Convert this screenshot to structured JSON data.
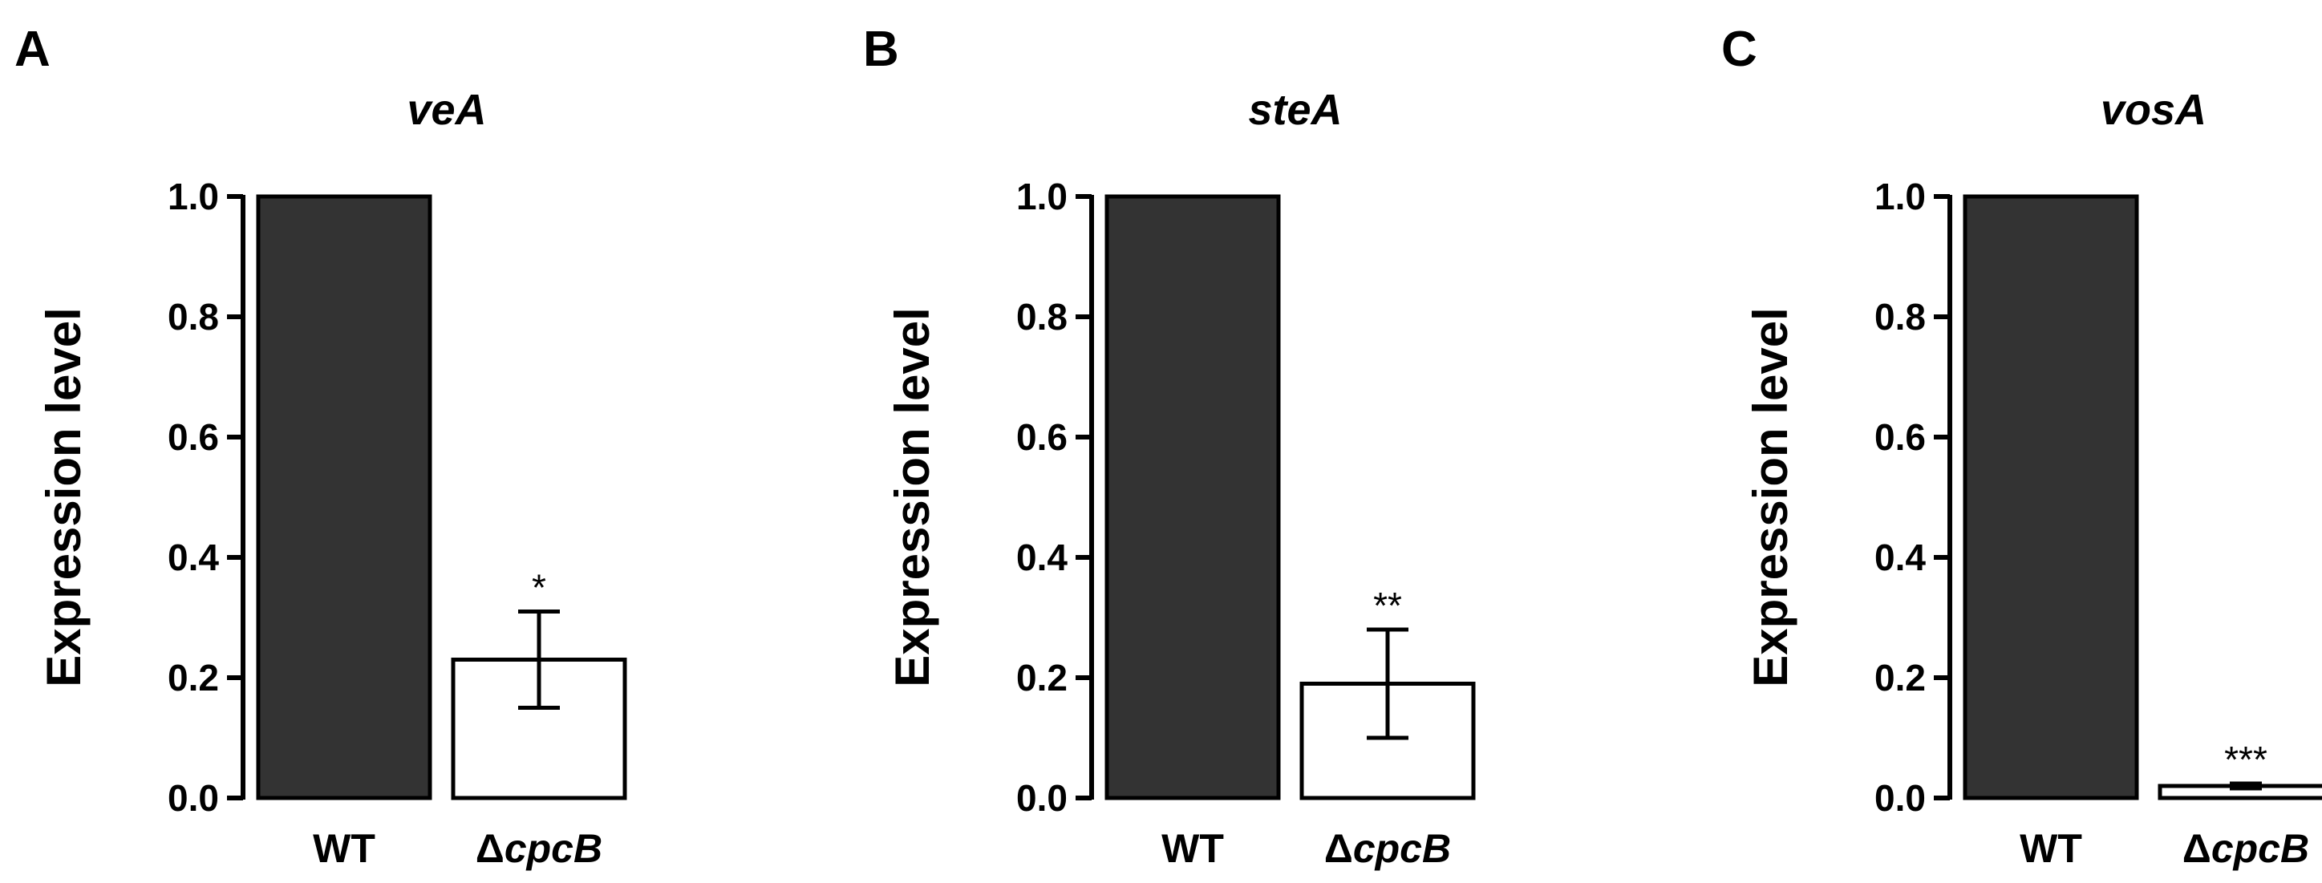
{
  "chart_data": [
    {
      "type": "bar",
      "panel_label": "A",
      "title": "veA",
      "ylabel": "Expression level",
      "ylim": [
        0,
        1.0
      ],
      "yticks": [
        "0.0",
        "0.2",
        "0.4",
        "0.6",
        "0.8",
        "1.0"
      ],
      "categories": [
        {
          "prefix": "",
          "name": "WT"
        },
        {
          "prefix": "Δ",
          "name": "cpcB"
        }
      ],
      "values": [
        1.0,
        0.23
      ],
      "errors": [
        null,
        0.08
      ],
      "significance": [
        "",
        "*"
      ],
      "bar_colors": [
        "#333333",
        "#ffffff"
      ]
    },
    {
      "type": "bar",
      "panel_label": "B",
      "title": "steA",
      "ylabel": "Expression level",
      "ylim": [
        0,
        1.0
      ],
      "yticks": [
        "0.0",
        "0.2",
        "0.4",
        "0.6",
        "0.8",
        "1.0"
      ],
      "categories": [
        {
          "prefix": "",
          "name": "WT"
        },
        {
          "prefix": "Δ",
          "name": "cpcB"
        }
      ],
      "values": [
        1.0,
        0.19
      ],
      "errors": [
        null,
        0.09
      ],
      "significance": [
        "",
        "**"
      ],
      "bar_colors": [
        "#333333",
        "#ffffff"
      ]
    },
    {
      "type": "bar",
      "panel_label": "C",
      "title": "vosA",
      "ylabel": "Expression level",
      "ylim": [
        0,
        1.0
      ],
      "yticks": [
        "0.0",
        "0.2",
        "0.4",
        "0.6",
        "0.8",
        "1.0"
      ],
      "categories": [
        {
          "prefix": "",
          "name": "WT"
        },
        {
          "prefix": "Δ",
          "name": "cpcB"
        }
      ],
      "values": [
        1.0,
        0.02
      ],
      "errors": [
        null,
        0.004
      ],
      "significance": [
        "",
        "***"
      ],
      "bar_colors": [
        "#333333",
        "#ffffff"
      ]
    }
  ]
}
